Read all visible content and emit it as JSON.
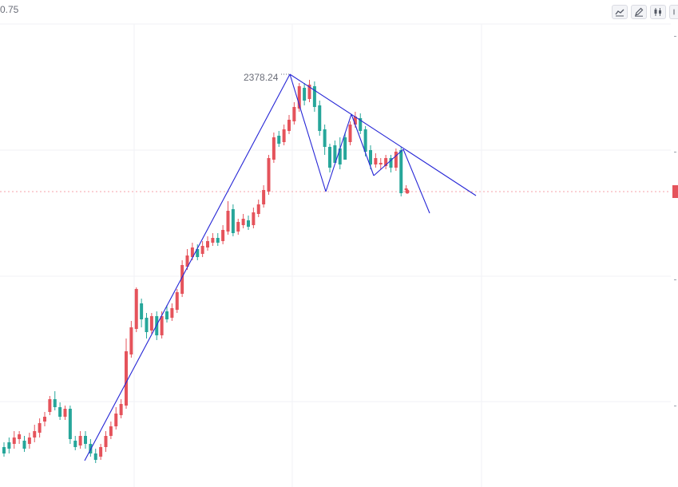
{
  "header": {
    "top_left_value": "0.75"
  },
  "toolbar": {
    "buttons": [
      "trend-line-tool",
      "draw-pencil-tool",
      "candle-style-tool",
      "more-tool"
    ]
  },
  "colors": {
    "up": "#e5535b",
    "down": "#26a69a",
    "trendline": "#2626d6",
    "last_price_line": "#f4a2a8",
    "grid": "#f1f2f5"
  },
  "chart_data": {
    "type": "candlestick",
    "title": "",
    "annotations": [
      {
        "text": "2378.24",
        "kind": "high-label"
      }
    ],
    "candles": [
      [
        0,
        568,
        560,
        572,
        554
      ],
      [
        0,
        562,
        554,
        568,
        548
      ],
      [
        1,
        556,
        548,
        562,
        540
      ],
      [
        1,
        550,
        544,
        556,
        540
      ],
      [
        0,
        552,
        562,
        546,
        566
      ],
      [
        1,
        556,
        548,
        562,
        542
      ],
      [
        1,
        548,
        540,
        554,
        532
      ],
      [
        1,
        542,
        530,
        548,
        524
      ],
      [
        1,
        528,
        522,
        534,
        516
      ],
      [
        1,
        516,
        500,
        520,
        496
      ],
      [
        0,
        500,
        510,
        490,
        514
      ],
      [
        0,
        510,
        522,
        504,
        526
      ],
      [
        1,
        522,
        512,
        526,
        508
      ],
      [
        0,
        512,
        550,
        508,
        556
      ],
      [
        0,
        552,
        560,
        546,
        564
      ],
      [
        1,
        558,
        546,
        562,
        540
      ],
      [
        0,
        546,
        556,
        540,
        562
      ],
      [
        0,
        556,
        568,
        550,
        572
      ],
      [
        0,
        568,
        576,
        562,
        580
      ],
      [
        1,
        572,
        560,
        576,
        556
      ],
      [
        1,
        560,
        546,
        566,
        540
      ],
      [
        1,
        546,
        534,
        550,
        528
      ],
      [
        1,
        534,
        518,
        538,
        510
      ],
      [
        1,
        520,
        506,
        524,
        500
      ],
      [
        1,
        508,
        440,
        512,
        424
      ],
      [
        1,
        444,
        410,
        448,
        402
      ],
      [
        1,
        412,
        362,
        416,
        360
      ],
      [
        0,
        380,
        400,
        374,
        410
      ],
      [
        0,
        398,
        416,
        392,
        424
      ],
      [
        1,
        414,
        396,
        418,
        392
      ],
      [
        0,
        396,
        420,
        390,
        426
      ],
      [
        1,
        420,
        396,
        424,
        390
      ],
      [
        0,
        390,
        400,
        382,
        404
      ],
      [
        1,
        398,
        386,
        402,
        380
      ],
      [
        1,
        388,
        366,
        392,
        362
      ],
      [
        1,
        368,
        332,
        372,
        326
      ],
      [
        1,
        334,
        320,
        338,
        312
      ],
      [
        1,
        322,
        310,
        326,
        304
      ],
      [
        0,
        312,
        322,
        306,
        326
      ],
      [
        1,
        318,
        308,
        322,
        302
      ],
      [
        1,
        310,
        302,
        314,
        296
      ],
      [
        1,
        304,
        298,
        308,
        292
      ],
      [
        0,
        298,
        304,
        292,
        308
      ],
      [
        1,
        302,
        288,
        306,
        282
      ],
      [
        1,
        290,
        264,
        294,
        252
      ],
      [
        0,
        262,
        292,
        256,
        296
      ],
      [
        1,
        290,
        278,
        294,
        274
      ],
      [
        1,
        282,
        274,
        286,
        268
      ],
      [
        0,
        276,
        284,
        270,
        288
      ],
      [
        1,
        282,
        266,
        286,
        260
      ],
      [
        1,
        268,
        256,
        272,
        250
      ],
      [
        1,
        256,
        238,
        260,
        232
      ],
      [
        1,
        240,
        198,
        244,
        194
      ],
      [
        1,
        200,
        172,
        204,
        166
      ],
      [
        0,
        170,
        180,
        164,
        184
      ],
      [
        1,
        178,
        162,
        182,
        156
      ],
      [
        1,
        164,
        150,
        168,
        144
      ],
      [
        1,
        152,
        134,
        156,
        128
      ],
      [
        1,
        136,
        108,
        140,
        104
      ],
      [
        0,
        110,
        126,
        104,
        132
      ],
      [
        1,
        124,
        106,
        128,
        100
      ],
      [
        0,
        108,
        134,
        102,
        140
      ],
      [
        0,
        132,
        164,
        126,
        170
      ],
      [
        0,
        162,
        184,
        156,
        194
      ],
      [
        0,
        184,
        210,
        180,
        216
      ],
      [
        0,
        204,
        182,
        200,
        176
      ],
      [
        0,
        186,
        206,
        172,
        212
      ],
      [
        0,
        200,
        172,
        196,
        166
      ],
      [
        1,
        178,
        156,
        182,
        152
      ],
      [
        1,
        156,
        146,
        160,
        140
      ],
      [
        0,
        148,
        164,
        142,
        168
      ],
      [
        0,
        162,
        190,
        158,
        196
      ],
      [
        0,
        188,
        206,
        182,
        212
      ],
      [
        1,
        206,
        198,
        210,
        192
      ],
      [
        1,
        204,
        206,
        198,
        212
      ],
      [
        1,
        208,
        198,
        212,
        194
      ],
      [
        0,
        198,
        210,
        194,
        216
      ],
      [
        1,
        210,
        190,
        214,
        186
      ],
      [
        0,
        188,
        242,
        184,
        246
      ],
      [
        1,
        238,
        236,
        232,
        240
      ]
    ]
  },
  "trendlines": [
    {
      "name": "rising-support-line",
      "points": [
        [
          106,
          577
        ],
        [
          363,
          93
        ]
      ]
    },
    {
      "name": "descending-resistance-line",
      "points": [
        [
          363,
          93
        ],
        [
          596,
          245
        ]
      ]
    },
    {
      "name": "drop-leg-1",
      "points": [
        [
          363,
          93
        ],
        [
          408,
          240
        ]
      ]
    },
    {
      "name": "rebound-leg-1",
      "points": [
        [
          408,
          240
        ],
        [
          440,
          143
        ]
      ]
    },
    {
      "name": "drop-leg-2",
      "points": [
        [
          440,
          143
        ],
        [
          468,
          220
        ]
      ]
    },
    {
      "name": "rebound-leg-2",
      "points": [
        [
          468,
          220
        ],
        [
          505,
          187
        ]
      ]
    },
    {
      "name": "projected-drop-line",
      "points": [
        [
          505,
          187
        ],
        [
          538,
          267
        ]
      ]
    }
  ]
}
